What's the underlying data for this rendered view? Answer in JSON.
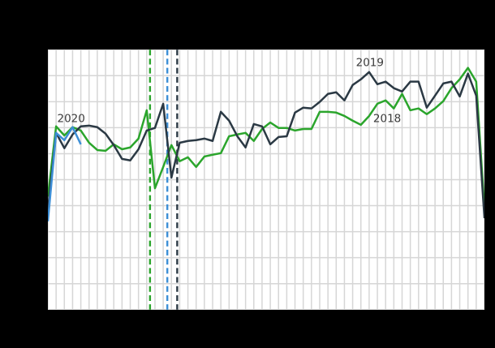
{
  "figure": {
    "background_color": "#000000",
    "plot_background_color": "#ffffff",
    "grid_color": "#d6d6d6",
    "label_color": "#3a3a3a"
  },
  "chart_data": {
    "type": "line",
    "title": "",
    "xlabel": "",
    "ylabel": "",
    "x_unit": "week",
    "x_range": [
      1,
      54
    ],
    "ylim": [
      0,
      10
    ],
    "grid": {
      "on": true,
      "x_intervals": 53,
      "y_intervals": 10
    },
    "legend_position": "inline-annotations",
    "series": [
      {
        "name": "2018",
        "color": "#2ba52c",
        "x_start_week": 1,
        "values": [
          4.35,
          7.05,
          6.7,
          7.02,
          6.89,
          6.42,
          6.14,
          6.11,
          6.36,
          6.17,
          6.24,
          6.58,
          7.67,
          4.67,
          5.49,
          6.33,
          5.71,
          5.86,
          5.49,
          5.89,
          5.96,
          6.02,
          6.67,
          6.74,
          6.8,
          6.49,
          6.95,
          7.2,
          6.99,
          6.99,
          6.89,
          6.95,
          6.95,
          7.61,
          7.61,
          7.58,
          7.45,
          7.27,
          7.11,
          7.45,
          7.92,
          8.05,
          7.74,
          8.3,
          7.67,
          7.74,
          7.52,
          7.74,
          8.02,
          8.52,
          8.86,
          9.3,
          8.77,
          3.86
        ]
      },
      {
        "name": "2019",
        "color": "#2b3944",
        "x_start_week": 1,
        "values": [
          3.83,
          6.8,
          6.21,
          6.74,
          7.05,
          7.08,
          7.02,
          6.77,
          6.33,
          5.8,
          5.74,
          6.17,
          6.89,
          6.99,
          7.92,
          5.08,
          6.42,
          6.49,
          6.52,
          6.58,
          6.49,
          7.61,
          7.27,
          6.67,
          6.24,
          7.14,
          7.05,
          6.36,
          6.64,
          6.67,
          7.58,
          7.77,
          7.74,
          7.99,
          8.3,
          8.36,
          8.05,
          8.64,
          8.86,
          9.14,
          8.67,
          8.77,
          8.52,
          8.39,
          8.77,
          8.77,
          7.77,
          8.23,
          8.7,
          8.77,
          8.2,
          9.08,
          8.23,
          3.52
        ]
      },
      {
        "name": "2020",
        "color": "#3d8fd6",
        "x_start_week": 1,
        "values": [
          3.4,
          6.8,
          6.52,
          7.02,
          6.36
        ]
      }
    ],
    "event_lines": [
      {
        "label": "2018-event",
        "week": 13.4,
        "color": "#2ba52c",
        "style": "dashed"
      },
      {
        "label": "2020-event",
        "week": 15.5,
        "color": "#3d8fd6",
        "style": "dashed"
      },
      {
        "label": "2019-event",
        "week": 16.7,
        "color": "#2b3944",
        "style": "dashed"
      }
    ],
    "annotations": [
      {
        "text": "2020",
        "week": 3.8,
        "value": 7.3
      },
      {
        "text": "2019",
        "week": 40.1,
        "value": 9.47
      },
      {
        "text": "2018",
        "week": 42.2,
        "value": 7.3
      }
    ]
  }
}
